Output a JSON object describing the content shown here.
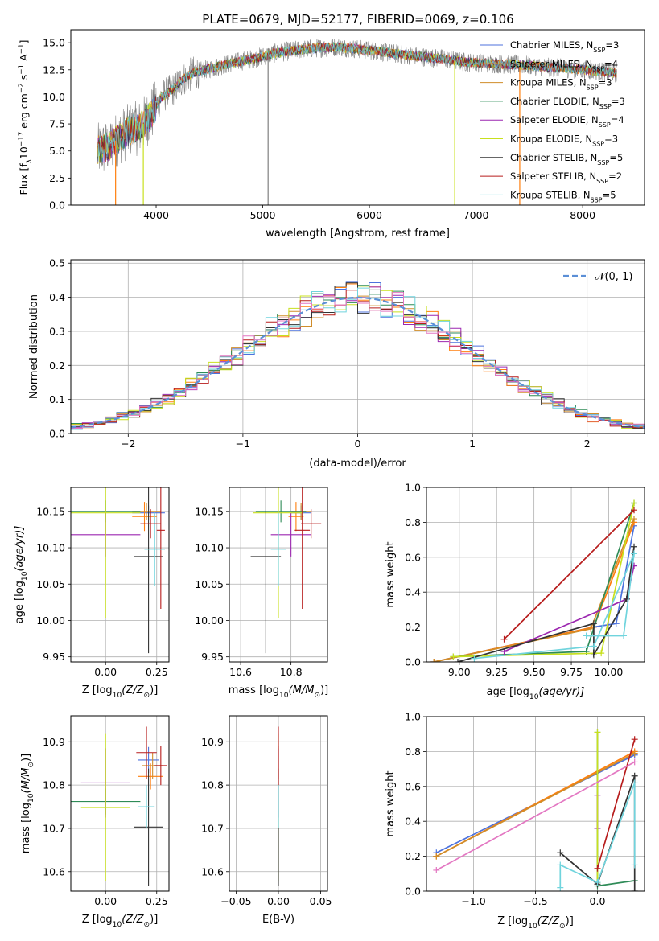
{
  "colors": {
    "Chabrier MILES": "#4c72dd",
    "Salpeter MILES": "#ff7f0e",
    "Kroupa MILES": "#d08d2a",
    "Chabrier ELODIE": "#2e8b57",
    "Salpeter ELODIE": "#9c27b0",
    "Kroupa ELODIE": "#c8e01e",
    "Chabrier STELIB": "#333333",
    "Salpeter STELIB": "#b71c1c",
    "Kroupa STELIB": "#70d4dd",
    "data": "#808080",
    "normal": "#5b8fd6"
  },
  "chart_data": [
    {
      "type": "line",
      "title": "PLATE=0679, MJD=52177, FIBERID=0069, z=0.106",
      "xlabel": "wavelength [Angstrom, rest frame]",
      "ylabel": "Flux [f",
      "ylabel_sub": "λ",
      "ylabel_rest": "10",
      "ylabel_sup1": "−17",
      "ylabel_tail": " erg cm",
      "ylabel_sup2": "−2",
      "ylabel_s": " s",
      "ylabel_sup3": "−1",
      "ylabel_a": " A",
      "ylabel_sup4": "−1",
      "ylabel_end": "]",
      "xlim": [
        3200,
        8580
      ],
      "ylim": [
        0,
        16.2
      ],
      "xticks": [
        4000,
        5000,
        6000,
        7000,
        8000
      ],
      "yticks": [
        "0.0",
        "2.5",
        "5.0",
        "7.5",
        "10.0",
        "12.5",
        "15.0"
      ],
      "legend": [
        {
          "name": "Chabrier MILES",
          "n": "3"
        },
        {
          "name": "Salpeter MILES",
          "n": "4"
        },
        {
          "name": "Kroupa MILES",
          "n": "3"
        },
        {
          "name": "Chabrier ELODIE",
          "n": "3"
        },
        {
          "name": "Salpeter ELODIE",
          "n": "4"
        },
        {
          "name": "Kroupa ELODIE",
          "n": "3"
        },
        {
          "name": "Chabrier STELIB",
          "n": "5"
        },
        {
          "name": "Salpeter STELIB",
          "n": "2"
        },
        {
          "name": "Kroupa STELIB",
          "n": "5"
        }
      ],
      "legend_position": "right",
      "spectrum_knots": {
        "x": [
          3450,
          3550,
          3650,
          3750,
          3850,
          3950,
          4050,
          4150,
          4250,
          4350,
          4500,
          4700,
          4900,
          5100,
          5300,
          5500,
          5700,
          5900,
          6100,
          6300,
          6500,
          6700,
          6900,
          7100,
          7300,
          7500,
          7700,
          7900,
          8100,
          8300
        ],
        "y": [
          5.0,
          5.4,
          6.2,
          6.9,
          7.2,
          8.3,
          10.0,
          10.6,
          11.6,
          12.2,
          12.6,
          13.1,
          13.5,
          14.0,
          14.3,
          14.5,
          14.6,
          14.4,
          14.2,
          13.9,
          13.7,
          13.5,
          13.2,
          13.1,
          13.0,
          12.9,
          12.7,
          12.6,
          12.4,
          12.2
        ]
      },
      "spikes": [
        {
          "x": 5050,
          "label": "data"
        },
        {
          "x": 3880,
          "label": "Kroupa ELODIE"
        },
        {
          "x": 6800,
          "label": "Kroupa ELODIE"
        },
        {
          "x": 7410,
          "label": "Salpeter MILES"
        },
        {
          "x": 3620,
          "label": "Salpeter MILES"
        }
      ]
    },
    {
      "type": "histogram",
      "xlabel": "(data-model)/error",
      "ylabel": "Normed distribution",
      "xlim": [
        -2.5,
        2.5
      ],
      "ylim": [
        0,
        0.51
      ],
      "xticks": [
        "−2",
        "−1",
        "0",
        "1",
        "2"
      ],
      "yticks": [
        "0.0",
        "0.1",
        "0.2",
        "0.3",
        "0.4",
        "0.5"
      ],
      "legend": [
        "𝒩(0, 1)"
      ],
      "legend_position": "top-right",
      "bin_width": 0.1
    },
    {
      "type": "scatter",
      "xlabel": "Z [log",
      "xlabel_sub": "10",
      "xlabel_rest": "(Z/Z",
      "xlabel_sub2": "⊙",
      "xlabel_end": ")]",
      "ylabel": "age  [log",
      "ylabel_sub": "10",
      "ylabel_rest": "(age/yr)]",
      "xlim": [
        -0.17,
        0.31
      ],
      "ylim": [
        9.943,
        10.183
      ],
      "xticks": [
        [
          "0.00",
          0
        ],
        [
          "0.25",
          0.25
        ]
      ],
      "yticks": [
        [
          "9.95",
          9.95
        ],
        [
          "10.00",
          10.0
        ],
        [
          "10.05",
          10.05
        ],
        [
          "10.10",
          10.1
        ],
        [
          "10.15",
          10.15
        ]
      ],
      "points": [
        {
          "model": "Chabrier MILES",
          "x": 0.21,
          "y": 10.148,
          "xerr": 0.08,
          "yerr": 0.01
        },
        {
          "model": "Salpeter MILES",
          "x": 0.19,
          "y": 10.143,
          "xerr": 0.06,
          "yerr": 0.02
        },
        {
          "model": "Kroupa MILES",
          "x": 0.2,
          "y": 10.15,
          "xerr": 0.07,
          "yerr": 0.012
        },
        {
          "model": "Chabrier ELODIE",
          "x": 0.0,
          "y": 10.15,
          "xerr": 0.17,
          "yerr": 0.015
        },
        {
          "model": "Salpeter ELODIE",
          "x": 0.0,
          "y": 10.118,
          "xerr": 0.17,
          "yerr": 0.03
        },
        {
          "model": "Kroupa ELODIE",
          "x": 0.0,
          "y": 10.148,
          "xerr": 0.17,
          "yerr": 0.145
        },
        {
          "model": "Chabrier STELIB",
          "x": 0.21,
          "y": 10.088,
          "xerr": 0.07,
          "yerr": 0.133
        },
        {
          "model": "Salpeter STELIB",
          "x": 0.27,
          "y": 10.124,
          "xerr": 0.02,
          "yerr": 0.108
        },
        {
          "model": "Kroupa STELIB",
          "x": 0.24,
          "y": 10.098,
          "xerr": 0.05,
          "yerr": 0.05
        },
        {
          "model": "Salpeter STELIB",
          "x": 0.22,
          "y": 10.133,
          "xerr": 0.05,
          "yerr": 0.02
        }
      ]
    },
    {
      "type": "scatter",
      "xlabel": "mass [log",
      "xlabel_sub": "10",
      "xlabel_rest": "(M/M",
      "xlabel_sub2": "⊙",
      "xlabel_end": ")]",
      "ylabel": "",
      "xlim": [
        10.555,
        10.945
      ],
      "ylim": [
        9.943,
        10.183
      ],
      "xticks": [
        [
          "10.6",
          10.6
        ],
        [
          "10.8",
          10.8
        ]
      ],
      "yticks": [
        [
          "9.95",
          9.95
        ],
        [
          "10.00",
          10.0
        ],
        [
          "10.05",
          10.05
        ],
        [
          "10.10",
          10.1
        ],
        [
          "10.15",
          10.15
        ]
      ],
      "points": [
        {
          "model": "Chabrier MILES",
          "x": 10.84,
          "y": 10.148,
          "xerr": 0.04,
          "yerr": 0.01
        },
        {
          "model": "Salpeter MILES",
          "x": 10.82,
          "y": 10.143,
          "xerr": 0.03,
          "yerr": 0.02
        },
        {
          "model": "Kroupa MILES",
          "x": 10.84,
          "y": 10.15,
          "xerr": 0.04,
          "yerr": 0.012
        },
        {
          "model": "Chabrier ELODIE",
          "x": 10.76,
          "y": 10.15,
          "xerr": 0.1,
          "yerr": 0.015
        },
        {
          "model": "Salpeter ELODIE",
          "x": 10.8,
          "y": 10.118,
          "xerr": 0.08,
          "yerr": 0.03
        },
        {
          "model": "Kroupa ELODIE",
          "x": 10.75,
          "y": 10.148,
          "xerr": 0.1,
          "yerr": 0.145
        },
        {
          "model": "Chabrier STELIB",
          "x": 10.7,
          "y": 10.088,
          "xerr": 0.06,
          "yerr": 0.133
        },
        {
          "model": "Salpeter STELIB",
          "x": 10.845,
          "y": 10.124,
          "xerr": 0.03,
          "yerr": 0.108
        },
        {
          "model": "Kroupa STELIB",
          "x": 10.75,
          "y": 10.098,
          "xerr": 0.03,
          "yerr": 0.05
        },
        {
          "model": "Salpeter STELIB",
          "x": 10.88,
          "y": 10.133,
          "xerr": 0.04,
          "yerr": 0.02
        }
      ]
    },
    {
      "type": "line",
      "xlabel": "age  [log",
      "xlabel_sub": "10",
      "xlabel_rest": "(age/yr)]",
      "ylabel": "mass weight",
      "xlim": [
        8.78,
        10.24
      ],
      "ylim": [
        0,
        1.0
      ],
      "xticks": [
        [
          "9.00",
          9.0
        ],
        [
          "9.25",
          9.25
        ],
        [
          "9.50",
          9.5
        ],
        [
          "9.75",
          9.75
        ],
        [
          "10.00",
          10.0
        ]
      ],
      "yticks": [
        [
          "0.0",
          0
        ],
        [
          "0.2",
          0.2
        ],
        [
          "0.4",
          0.4
        ],
        [
          "0.6",
          0.6
        ],
        [
          "0.8",
          0.8
        ],
        [
          "1.0",
          1.0
        ]
      ],
      "series": [
        {
          "model": "Chabrier MILES",
          "x": [
            8.83,
            9.9,
            10.05,
            10.17
          ],
          "y": [
            0.0,
            0.2,
            0.22,
            0.78
          ]
        },
        {
          "model": "Salpeter MILES",
          "x": [
            8.83,
            9.9,
            10.17
          ],
          "y": [
            0.0,
            0.2,
            0.8
          ]
        },
        {
          "model": "Kroupa MILES",
          "x": [
            8.83,
            9.88,
            10.17
          ],
          "y": [
            0.0,
            0.19,
            0.82
          ]
        },
        {
          "model": "Chabrier ELODIE",
          "x": [
            8.96,
            9.85,
            10.17
          ],
          "y": [
            0.03,
            0.06,
            0.91
          ]
        },
        {
          "model": "Salpeter ELODIE",
          "x": [
            9.3,
            10.12,
            10.17
          ],
          "y": [
            0.06,
            0.36,
            0.55
          ]
        },
        {
          "model": "Kroupa ELODIE",
          "x": [
            8.96,
            9.95,
            10.17
          ],
          "y": [
            0.03,
            0.05,
            0.91
          ]
        },
        {
          "model": "Chabrier STELIB",
          "x": [
            8.99,
            9.9,
            9.9,
            10.12,
            10.17
          ],
          "y": [
            0.0,
            0.22,
            0.04,
            0.36,
            0.66
          ]
        },
        {
          "model": "Salpeter STELIB",
          "x": [
            9.3,
            10.17
          ],
          "y": [
            0.13,
            0.87
          ]
        },
        {
          "model": "Kroupa STELIB",
          "x": [
            9.85,
            10.1,
            10.17
          ],
          "y": [
            0.15,
            0.15,
            0.62
          ]
        },
        {
          "model": "Kroupa STELIB",
          "x": [
            9.1,
            9.9,
            10.17
          ],
          "y": [
            0.02,
            0.09,
            0.62
          ]
        }
      ]
    },
    {
      "type": "scatter",
      "xlabel": "Z [log",
      "xlabel_sub": "10",
      "xlabel_rest": "(Z/Z",
      "xlabel_sub2": "⊙",
      "xlabel_end": ")]",
      "ylabel": "mass [log",
      "ylabel_sub": "10",
      "ylabel_rest": "(M/M",
      "ylabel_sub2": "⊙",
      "ylabel_end": ")]",
      "xlim": [
        -0.17,
        0.31
      ],
      "ylim": [
        10.555,
        10.96
      ],
      "xticks": [
        [
          "0.00",
          0
        ],
        [
          "0.25",
          0.25
        ]
      ],
      "yticks": [
        [
          "10.6",
          10.6
        ],
        [
          "10.7",
          10.7
        ],
        [
          "10.8",
          10.8
        ],
        [
          "10.9",
          10.9
        ]
      ],
      "points": [
        {
          "model": "Chabrier MILES",
          "x": 0.21,
          "y": 10.858,
          "xerr": 0.05,
          "yerr": 0.03
        },
        {
          "model": "Salpeter MILES",
          "x": 0.22,
          "y": 10.82,
          "xerr": 0.06,
          "yerr": 0.03
        },
        {
          "model": "Kroupa MILES",
          "x": 0.23,
          "y": 10.845,
          "xerr": 0.05,
          "yerr": 0.03
        },
        {
          "model": "Chabrier ELODIE",
          "x": 0.0,
          "y": 10.762,
          "xerr": 0.17,
          "yerr": 0.03
        },
        {
          "model": "Salpeter ELODIE",
          "x": 0.0,
          "y": 10.805,
          "xerr": 0.12,
          "yerr": 0.08
        },
        {
          "model": "Kroupa ELODIE",
          "x": 0.0,
          "y": 10.748,
          "xerr": 0.12,
          "yerr": 0.17
        },
        {
          "model": "Chabrier STELIB",
          "x": 0.21,
          "y": 10.703,
          "xerr": 0.07,
          "yerr": 0.135
        },
        {
          "model": "Salpeter STELIB",
          "x": 0.27,
          "y": 10.845,
          "xerr": 0.03,
          "yerr": 0.045
        },
        {
          "model": "Kroupa STELIB",
          "x": 0.2,
          "y": 10.75,
          "xerr": 0.04,
          "yerr": 0.05
        },
        {
          "model": "Salpeter STELIB",
          "x": 0.2,
          "y": 10.875,
          "xerr": 0.05,
          "yerr": 0.06
        }
      ]
    },
    {
      "type": "scatter",
      "xlabel": "E(B-V)",
      "ylabel": "",
      "xlim": [
        -0.058,
        0.058
      ],
      "ylim": [
        10.555,
        10.96
      ],
      "xticks": [
        [
          "−0.05",
          -0.05
        ],
        [
          "0.00",
          0
        ],
        [
          "0.05",
          0.05
        ]
      ],
      "yticks": [
        [
          "10.6",
          10.6
        ],
        [
          "10.7",
          10.7
        ],
        [
          "10.8",
          10.8
        ],
        [
          "10.9",
          10.9
        ]
      ],
      "points": [
        {
          "model": "Kroupa ELODIE",
          "x": 0,
          "y": 10.748,
          "xerr": 0,
          "yerr": 0.17
        },
        {
          "model": "Salpeter ELODIE",
          "x": 0,
          "y": 10.805,
          "xerr": 0,
          "yerr": 0.08
        },
        {
          "model": "Chabrier STELIB",
          "x": 0,
          "y": 10.703,
          "xerr": 0,
          "yerr": 0.135
        },
        {
          "model": "Kroupa STELIB",
          "x": 0,
          "y": 10.75,
          "xerr": 0,
          "yerr": 0.05
        },
        {
          "model": "Salpeter STELIB",
          "x": 0,
          "y": 10.845,
          "xerr": 0,
          "yerr": 0.045
        },
        {
          "model": "Salpeter STELIB",
          "x": 0,
          "y": 10.875,
          "xerr": 0,
          "yerr": 0.06
        }
      ]
    },
    {
      "type": "line",
      "xlabel": "Z [log",
      "xlabel_sub": "10",
      "xlabel_rest": "(Z/Z",
      "xlabel_sub2": "⊙",
      "xlabel_end": ")]",
      "ylabel": "mass weight",
      "xlim": [
        -1.38,
        0.38
      ],
      "ylim": [
        0,
        1.0
      ],
      "xticks": [
        [
          "−1.0",
          -1.0
        ],
        [
          "−0.5",
          -0.5
        ],
        [
          "0.0",
          0.0
        ]
      ],
      "yticks": [
        [
          "0.0",
          0
        ],
        [
          "0.2",
          0.2
        ],
        [
          "0.4",
          0.4
        ],
        [
          "0.6",
          0.6
        ],
        [
          "0.8",
          0.8
        ],
        [
          "1.0",
          1.0
        ]
      ],
      "series": [
        {
          "model": "Chabrier MILES",
          "x": [
            -1.3,
            0.3
          ],
          "y": [
            0.22,
            0.78
          ]
        },
        {
          "model": "Salpeter MILES",
          "x": [
            -1.3,
            0.3
          ],
          "y": [
            0.2,
            0.8
          ]
        },
        {
          "model": "Kroupa MILES",
          "x": [
            -1.3,
            0.3
          ],
          "y": [
            0.2,
            0.79
          ]
        },
        {
          "model": "Chabrier ELODIE",
          "x": [
            0.0,
            0.0,
            0.3
          ],
          "y": [
            0.91,
            0.03,
            0.06
          ]
        },
        {
          "model": "Salpeter ELODIE",
          "x": [
            0.0,
            0.0
          ],
          "y": [
            0.55,
            0.36
          ]
        },
        {
          "model": "Kroupa ELODIE",
          "x": [
            0.0,
            0.0
          ],
          "y": [
            0.91,
            0.05
          ]
        },
        {
          "model": "Chabrier STELIB",
          "x": [
            -0.3,
            0.0,
            0.3,
            0.3
          ],
          "y": [
            0.22,
            0.04,
            0.66,
            0.0
          ]
        },
        {
          "model": "Salpeter STELIB",
          "x": [
            0.0,
            0.3
          ],
          "y": [
            0.13,
            0.87
          ]
        },
        {
          "model": "Kroupa STELIB",
          "x": [
            -0.3,
            -0.3,
            0.0,
            0.3,
            0.3
          ],
          "y": [
            0.02,
            0.15,
            0.05,
            0.62,
            0.15
          ]
        },
        {
          "model": "Pink",
          "x": [
            -1.3,
            0.3
          ],
          "y": [
            0.12,
            0.74
          ]
        }
      ]
    }
  ]
}
